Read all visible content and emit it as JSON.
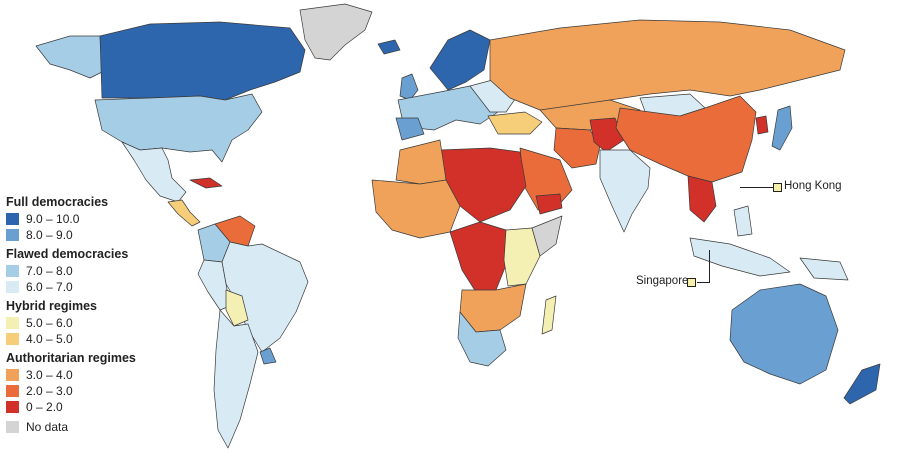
{
  "colors": {
    "full_9_10": "#2e66ad",
    "full_8_9": "#6a9fd1",
    "flawed_7_8": "#a6cde6",
    "flawed_6_7": "#d8ebf4",
    "hybrid_5_6": "#f4efb3",
    "hybrid_4_5": "#f6cd78",
    "auth_3_4": "#f0a25a",
    "auth_2_3": "#ea6c3b",
    "auth_0_2": "#d2312a",
    "no_data": "#d4d4d4",
    "ocean": "#ffffff",
    "border": "#3a3a3a"
  },
  "legend": {
    "groups": [
      {
        "title": "Full democracies",
        "items": [
          {
            "label": "9.0 – 10.0",
            "color_key": "full_9_10"
          },
          {
            "label": "8.0 – 9.0",
            "color_key": "full_8_9"
          }
        ]
      },
      {
        "title": "Flawed democracies",
        "items": [
          {
            "label": "7.0 – 8.0",
            "color_key": "flawed_7_8"
          },
          {
            "label": "6.0 – 7.0",
            "color_key": "flawed_6_7"
          }
        ]
      },
      {
        "title": "Hybrid regimes",
        "items": [
          {
            "label": "5.0 – 6.0",
            "color_key": "hybrid_5_6"
          },
          {
            "label": "4.0 – 5.0",
            "color_key": "hybrid_4_5"
          }
        ]
      },
      {
        "title": "Authoritarian regimes",
        "items": [
          {
            "label": "3.0 – 4.0",
            "color_key": "auth_3_4"
          },
          {
            "label": "2.0 – 3.0",
            "color_key": "auth_2_3"
          },
          {
            "label": "0 – 2.0",
            "color_key": "auth_0_2"
          }
        ]
      }
    ],
    "no_data_label": "No data"
  },
  "callouts": {
    "hong_kong": "Hong Kong",
    "singapore": "Singapore"
  }
}
